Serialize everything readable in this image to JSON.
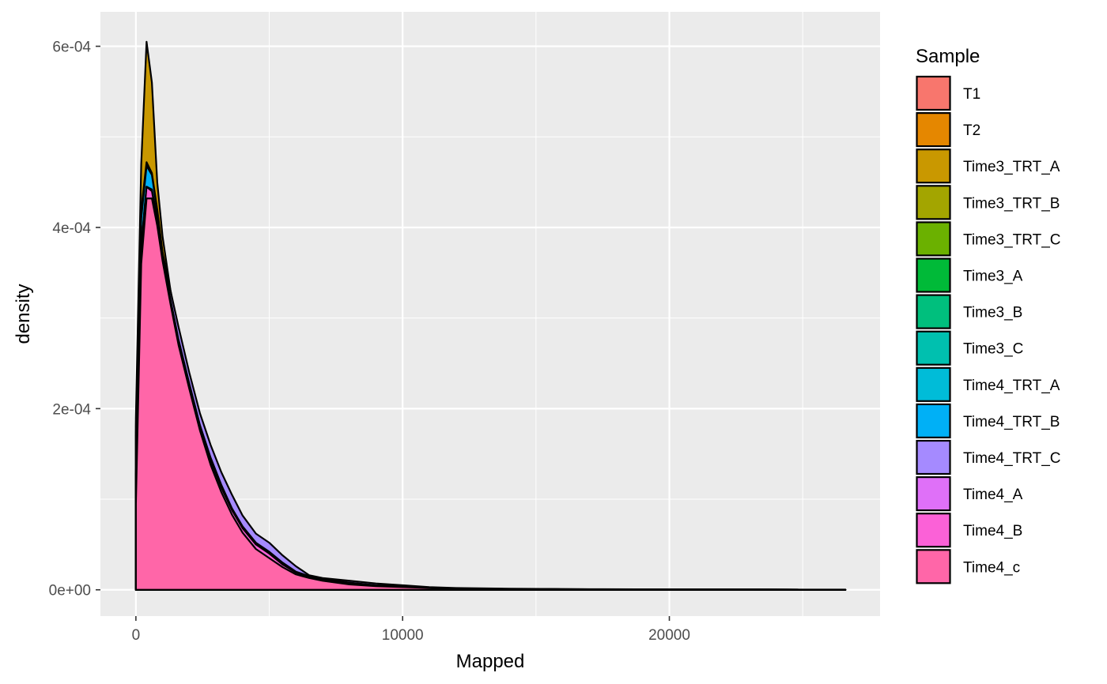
{
  "chart_data": {
    "type": "area",
    "title": "",
    "xlabel": "Mapped",
    "ylabel": "density",
    "xlim": [
      -1330,
      27900
    ],
    "ylim": [
      -2.9e-05,
      0.000638
    ],
    "x_ticks": [
      0,
      10000,
      20000
    ],
    "x_tick_labels": [
      "0",
      "10000",
      "20000"
    ],
    "y_ticks": [
      0,
      0.0002,
      0.0004,
      0.0006
    ],
    "y_tick_labels": [
      "0e+00",
      "2e-04",
      "4e-04",
      "6e-04"
    ],
    "grid": true,
    "legend_title": "Sample",
    "legend_position": "right",
    "x": [
      0,
      200,
      400,
      600,
      800,
      1000,
      1300,
      1600,
      2000,
      2400,
      2800,
      3200,
      3600,
      4000,
      4500,
      5000,
      5500,
      6000,
      6500,
      7000,
      8000,
      9000,
      10000,
      11000,
      12000,
      14000,
      17000,
      20000,
      23000,
      26600
    ],
    "series": [
      {
        "name": "T1",
        "color": "#F8766D",
        "values": [
          0.00012,
          0.00038,
          0.00046,
          0.000452,
          0.000415,
          0.00037,
          0.00032,
          0.000275,
          0.000225,
          0.000178,
          0.00014,
          0.00011,
          8.5e-05,
          6.5e-05,
          4.6e-05,
          3.6e-05,
          2.6e-05,
          1.8e-05,
          1.4e-05,
          1.1e-05,
          7e-06,
          4e-06,
          3e-06,
          2e-06,
          1e-06,
          8e-07,
          5e-07,
          3e-07,
          2e-07,
          1e-07
        ]
      },
      {
        "name": "T2",
        "color": "#E58700",
        "values": [
          0.000125,
          0.00039,
          0.00047,
          0.00046,
          0.00042,
          0.000372,
          0.000322,
          0.000276,
          0.000225,
          0.000178,
          0.00014,
          0.00011,
          8.5e-05,
          6.5e-05,
          4.6e-05,
          3.6e-05,
          2.6e-05,
          1.8e-05,
          1.4e-05,
          1.1e-05,
          7e-06,
          4e-06,
          3e-06,
          2e-06,
          1e-06,
          8e-07,
          5e-07,
          3e-07,
          2e-07,
          1e-07
        ]
      },
      {
        "name": "Time3_TRT_A",
        "color": "#C99800",
        "values": [
          0.00019,
          0.00047,
          0.000605,
          0.00056,
          0.00045,
          0.00039,
          0.00033,
          0.00028,
          0.000228,
          0.00018,
          0.000142,
          0.000111,
          8.6e-05,
          6.6e-05,
          4.7e-05,
          3.6e-05,
          2.6e-05,
          1.8e-05,
          1.4e-05,
          1.1e-05,
          7e-06,
          4e-06,
          3e-06,
          2e-06,
          1e-06,
          8e-07,
          5e-07,
          3e-07,
          2e-07,
          1e-07
        ]
      },
      {
        "name": "Time3_TRT_B",
        "color": "#A3A500",
        "values": [
          0.00012,
          0.00038,
          0.000455,
          0.000448,
          0.000412,
          0.000368,
          0.000318,
          0.000273,
          0.000224,
          0.000177,
          0.000139,
          0.000109,
          8.4e-05,
          6.4e-05,
          4.6e-05,
          3.6e-05,
          2.6e-05,
          1.8e-05,
          1.4e-05,
          1.1e-05,
          7e-06,
          4e-06,
          3e-06,
          2e-06,
          1e-06,
          8e-07,
          5e-07,
          3e-07,
          2e-07,
          1e-07
        ]
      },
      {
        "name": "Time3_TRT_C",
        "color": "#6BB100",
        "values": [
          0.00012,
          0.000382,
          0.000458,
          0.00045,
          0.000413,
          0.000369,
          0.000319,
          0.000274,
          0.000224,
          0.000177,
          0.000139,
          0.000109,
          8.4e-05,
          6.4e-05,
          4.6e-05,
          3.6e-05,
          2.6e-05,
          1.8e-05,
          1.4e-05,
          1.1e-05,
          7e-06,
          4e-06,
          3e-06,
          2e-06,
          1e-06,
          8e-07,
          5e-07,
          3e-07,
          2e-07,
          1e-07
        ]
      },
      {
        "name": "Time3_A",
        "color": "#00BA38",
        "values": [
          0.000125,
          0.000385,
          0.000462,
          0.000452,
          0.000414,
          0.000369,
          0.000319,
          0.000274,
          0.000224,
          0.000177,
          0.000139,
          0.000109,
          8.4e-05,
          6.4e-05,
          4.6e-05,
          3.6e-05,
          2.6e-05,
          1.8e-05,
          1.4e-05,
          1.1e-05,
          7e-06,
          4e-06,
          3e-06,
          2e-06,
          1e-06,
          8e-07,
          5e-07,
          3e-07,
          2e-07,
          1e-07
        ]
      },
      {
        "name": "Time3_B",
        "color": "#00BF7D",
        "values": [
          0.000125,
          0.000384,
          0.00046,
          0.000451,
          0.000414,
          0.000369,
          0.000319,
          0.000274,
          0.000224,
          0.000177,
          0.000139,
          0.000109,
          8.4e-05,
          6.4e-05,
          4.6e-05,
          3.6e-05,
          2.6e-05,
          1.8e-05,
          1.4e-05,
          1.1e-05,
          7e-06,
          4e-06,
          3e-06,
          2e-06,
          1e-06,
          8e-07,
          5e-07,
          3e-07,
          2e-07,
          1e-07
        ]
      },
      {
        "name": "Time3_C",
        "color": "#00C0AF",
        "values": [
          0.000125,
          0.000386,
          0.000463,
          0.000453,
          0.000415,
          0.00037,
          0.00032,
          0.000274,
          0.000224,
          0.000177,
          0.000139,
          0.000109,
          8.4e-05,
          6.4e-05,
          4.6e-05,
          3.6e-05,
          2.6e-05,
          1.8e-05,
          1.4e-05,
          1.1e-05,
          7e-06,
          4e-06,
          3e-06,
          2e-06,
          1e-06,
          8e-07,
          5e-07,
          3e-07,
          2e-07,
          1e-07
        ]
      },
      {
        "name": "Time4_TRT_A",
        "color": "#00BCD8",
        "values": [
          0.00018,
          0.00042,
          0.000472,
          0.00046,
          0.00042,
          0.000372,
          0.000322,
          0.000276,
          0.000225,
          0.000178,
          0.00014,
          0.00011,
          8.5e-05,
          6.5e-05,
          4.6e-05,
          3.6e-05,
          2.6e-05,
          1.8e-05,
          1.4e-05,
          1.1e-05,
          7e-06,
          4e-06,
          3e-06,
          2e-06,
          1e-06,
          8e-07,
          5e-07,
          3e-07,
          2e-07,
          1e-07
        ]
      },
      {
        "name": "Time4_TRT_B",
        "color": "#00B0F6",
        "values": [
          0.00017,
          0.00041,
          0.000468,
          0.000458,
          0.000418,
          0.000371,
          0.000321,
          0.000275,
          0.000225,
          0.000178,
          0.00014,
          0.00011,
          8.5e-05,
          6.5e-05,
          4.6e-05,
          3.6e-05,
          2.6e-05,
          1.8e-05,
          1.4e-05,
          1.1e-05,
          7e-06,
          4e-06,
          3e-06,
          2e-06,
          1e-06,
          8e-07,
          5e-07,
          3e-07,
          2e-07,
          1e-07
        ]
      },
      {
        "name": "Time4_TRT_C",
        "color": "#A58AFF",
        "values": [
          0.0001,
          0.00036,
          0.000435,
          0.000435,
          0.000405,
          0.000372,
          0.00033,
          0.00029,
          0.00024,
          0.000195,
          0.00016,
          0.00013,
          0.000105,
          8.2e-05,
          6.2e-05,
          5.2e-05,
          3.8e-05,
          2.6e-05,
          1.6e-05,
          1.3e-05,
          1e-05,
          7e-06,
          5e-06,
          3e-06,
          2e-06,
          1.2e-06,
          7e-07,
          4e-07,
          3e-07,
          2e-07
        ]
      },
      {
        "name": "Time4_A",
        "color": "#DF70F8",
        "values": [
          0.00012,
          0.00038,
          0.000445,
          0.000442,
          0.00041,
          0.000368,
          0.00032,
          0.000276,
          0.000228,
          0.000182,
          0.000146,
          0.000116,
          9e-05,
          7e-05,
          5.2e-05,
          4.2e-05,
          3e-05,
          2e-05,
          1.5e-05,
          1.2e-05,
          8e-06,
          5e-06,
          4e-06,
          2e-06,
          1e-06,
          9e-07,
          6e-07,
          4e-07,
          2e-07,
          1e-07
        ]
      },
      {
        "name": "Time4_B",
        "color": "#FB61D7",
        "values": [
          0.00012,
          0.000378,
          0.000445,
          0.00044,
          0.000408,
          0.000366,
          0.000318,
          0.000274,
          0.000226,
          0.00018,
          0.000143,
          0.000113,
          8.8e-05,
          6.8e-05,
          5e-05,
          4e-05,
          2.8e-05,
          1.9e-05,
          1.4e-05,
          1.1e-05,
          7e-06,
          4e-06,
          3e-06,
          2e-06,
          1e-06,
          8e-07,
          5e-07,
          3e-07,
          2e-07,
          1e-07
        ]
      },
      {
        "name": "Time4_c",
        "color": "#FF66A8",
        "values": [
          9.5e-05,
          0.00036,
          0.000432,
          0.000432,
          0.000402,
          0.000363,
          0.000315,
          0.00027,
          0.000222,
          0.000176,
          0.000138,
          0.000108,
          8.3e-05,
          6.3e-05,
          4.5e-05,
          3.5e-05,
          2.5e-05,
          1.7e-05,
          1.3e-05,
          1e-05,
          6e-06,
          4e-06,
          3e-06,
          2e-06,
          1e-06,
          8e-07,
          5e-07,
          3e-07,
          2e-07,
          1e-07
        ]
      }
    ]
  },
  "colors": {
    "panel_background": "#EBEBEB",
    "grid_major": "#FFFFFF",
    "outline": "#000000"
  }
}
